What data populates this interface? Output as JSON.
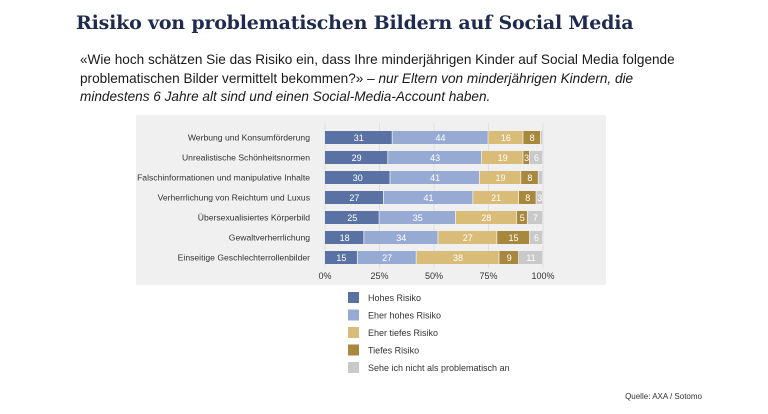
{
  "title": "Risiko von problematischen Bildern auf Social Media",
  "subtitle_quote": "«Wie hoch schätzen Sie das Risiko ein, dass Ihre minderjährigen Kinder auf Social Media folgende problematischen Bilder vermittelt bekommen?»",
  "subtitle_dash": " – ",
  "subtitle_note": "nur Eltern von minderjährigen Kindern, die mindestens 6 Jahre alt sind und einen Social-Media-Account haben.",
  "source": "Quelle: AXA / Sotomo",
  "colors": {
    "hohes": "#5a72a3",
    "eher_hohes": "#97aad4",
    "eher_tiefes": "#d9bc77",
    "tiefes": "#a8883c",
    "sehe_nicht": "#c9c9c9",
    "plot_bg": "#f0f0f0",
    "title": "#1e2b4f"
  },
  "chart_data": {
    "type": "bar",
    "orientation": "horizontal",
    "stacked": true,
    "categories": [
      "Werbung und Konsumförderung",
      "Unrealistische Schönheitsnormen",
      "Falschinformationen und manipulative Inhalte",
      "Verherrlichung von Reichtum und Luxus",
      "Übersexualisiertes Körperbild",
      "Gewaltverherrlichung",
      "Einseitige Geschlechterrollenbilder"
    ],
    "series": [
      {
        "name": "Hohes Risiko",
        "values": [
          31,
          29,
          30,
          27,
          25,
          18,
          15
        ]
      },
      {
        "name": "Eher hohes Risiko",
        "values": [
          44,
          43,
          41,
          41,
          35,
          34,
          27
        ]
      },
      {
        "name": "Eher tiefes Risiko",
        "values": [
          16,
          19,
          19,
          21,
          28,
          27,
          38
        ]
      },
      {
        "name": "Tiefes Risiko",
        "values": [
          8,
          3,
          8,
          8,
          5,
          15,
          9
        ]
      },
      {
        "name": "Sehe ich nicht als problematisch an",
        "values": [
          1,
          6,
          2,
          3,
          7,
          6,
          11
        ]
      }
    ],
    "labels": [
      [
        "31",
        "44",
        "16",
        "8",
        ""
      ],
      [
        "29",
        "43",
        "19",
        "3",
        "6"
      ],
      [
        "30",
        "41",
        "19",
        "8",
        ""
      ],
      [
        "27",
        "41",
        "21",
        "8",
        "3"
      ],
      [
        "25",
        "35",
        "28",
        "5",
        "7"
      ],
      [
        "18",
        "34",
        "27",
        "15",
        "6"
      ],
      [
        "15",
        "27",
        "38",
        "9",
        "11"
      ]
    ],
    "x_ticks": [
      "0%",
      "25%",
      "50%",
      "75%",
      "100%"
    ],
    "xlim": [
      0,
      100
    ],
    "legend_position": "bottom-left",
    "grid": "vertical"
  }
}
